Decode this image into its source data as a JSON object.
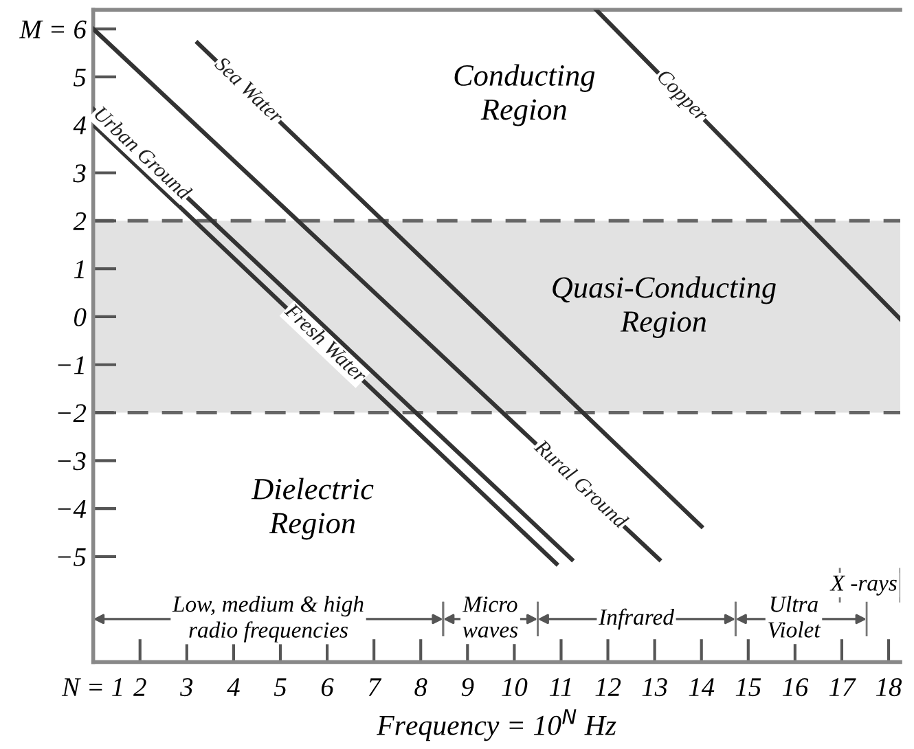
{
  "chart_data": {
    "type": "line",
    "xlabel": "Frequency = 10$^{N}$ Hz",
    "series": [
      {
        "name": "Sea Water",
        "color": "#333333",
        "x": [
          3.23,
          14.0
        ],
        "values": [
          5.71,
          -4.37
        ]
      },
      {
        "name": "Urban Ground",
        "color": "#333333",
        "x": [
          1,
          11.23
        ],
        "values": [
          4.33,
          -5.06
        ]
      },
      {
        "name": "Fresh Water",
        "color": "#333333",
        "x": [
          1,
          10.9
        ],
        "values": [
          4.0,
          -5.15
        ]
      },
      {
        "name": "Rural Ground",
        "color": "#333333",
        "x": [
          1,
          13.1
        ],
        "values": [
          6.0,
          -5.06
        ]
      },
      {
        "name": "Copper",
        "color": "#333333",
        "x": [
          11.75,
          18.25
        ],
        "values": [
          6.4,
          -0.05
        ]
      }
    ],
    "xlim": [
      1,
      18.25
    ],
    "ylim": [
      -7.2,
      6.4
    ],
    "xticks": [
      {
        "value": 1,
        "label": "N = 1"
      },
      2,
      3,
      4,
      5,
      6,
      7,
      8,
      9,
      10,
      11,
      12,
      13,
      14,
      15,
      16,
      17,
      18
    ],
    "yticks": [
      {
        "value": -5,
        "label": "−5"
      },
      {
        "value": -4,
        "label": "−4"
      },
      {
        "value": -3,
        "label": "−3"
      },
      {
        "value": -2,
        "label": "−2"
      },
      {
        "value": -1,
        "label": "−1"
      },
      0,
      1,
      2,
      3,
      4,
      5,
      {
        "value": 6,
        "label": "M = 6"
      }
    ],
    "bands": [
      {
        "axis": "y",
        "from": -2,
        "to": 2,
        "color": "#e2e2e2"
      }
    ],
    "ref_lines": [
      {
        "axis": "y",
        "value": 2,
        "color": "#666666",
        "line_style": "dashed"
      },
      {
        "axis": "y",
        "value": -2,
        "color": "#666666",
        "line_style": "dashed"
      }
    ],
    "annotations": [
      "Conducting\nRegion",
      "Quasi-Conducting\nRegion",
      "Dielectric\nRegion",
      "Low, medium & high\nradio frequencies",
      "Micro\nwaves",
      "Infrared",
      "Ultra\nViolet",
      "X -rays"
    ],
    "grid": false,
    "legend": false,
    "marker": "none",
    "line_style": "solid"
  }
}
